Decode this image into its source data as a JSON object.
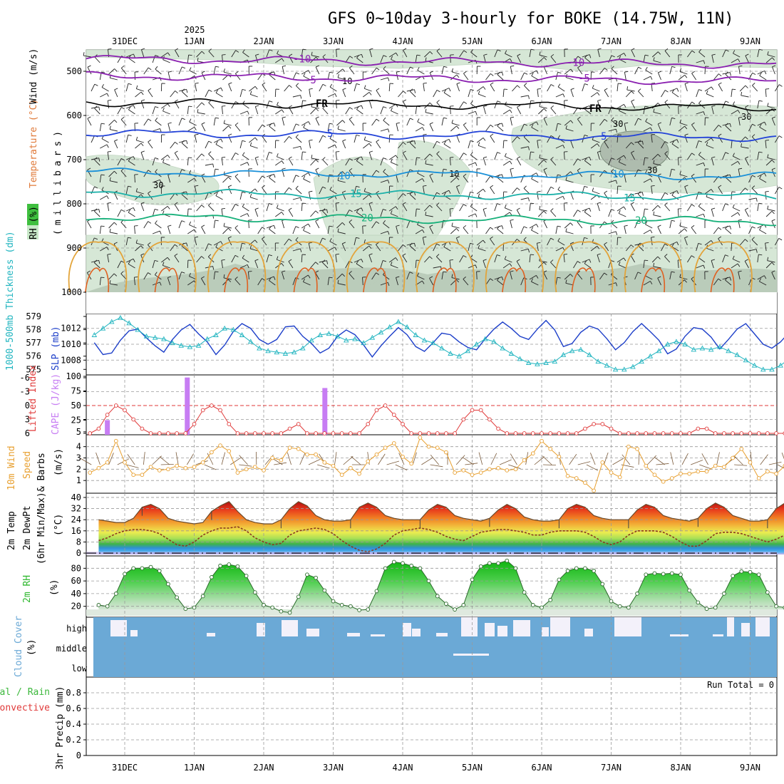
{
  "title": "GFS 0~10day 3-hourly for BOKE (14.75W, 11N)",
  "year_label": "2025",
  "date_labels": [
    "31DEC",
    "1JAN",
    "2JAN",
    "3JAN",
    "4JAN",
    "5JAN",
    "6JAN",
    "7JAN",
    "8JAN",
    "9JAN"
  ],
  "colors": {
    "temp": "#7a1fa2",
    "rh_fill": "#cfe3cf",
    "slp": "#1d3fc9",
    "thick": "#22b5c0",
    "li": "#e03a3a",
    "cape": "#c77df3",
    "wind": "#e8a030",
    "rh2m": "#2fb82f",
    "cloud": "#6ba9d6",
    "precip_total": "#3cb83c",
    "precip_conv": "#e03a3a"
  },
  "upper_panel": {
    "labels": {
      "rh": "RH (%)",
      "temp": "Temperature (°C)",
      "wind": "Wind (m/s)",
      "unit": "(millibars)"
    },
    "y_ticks": [
      "500",
      "600",
      "700",
      "800",
      "900",
      "1000"
    ],
    "isotherms": [
      {
        "label": "-10",
        "p": 472
      },
      {
        "label": "-5",
        "p": 510
      },
      {
        "label": "FR",
        "p": 570
      },
      {
        "label": "5",
        "p": 640
      },
      {
        "label": "10",
        "p": 728
      },
      {
        "label": "15",
        "p": 775
      },
      {
        "label": "20",
        "p": 830
      }
    ],
    "rh_contour_labels": [
      "10",
      "10",
      "30",
      "30",
      "30",
      "30"
    ]
  },
  "slp_panel": {
    "labels": {
      "thick": "1000-500mb Thickness (dm)",
      "slp": "SLP (mb)"
    },
    "left_ticks": [
      "579",
      "578",
      "577",
      "576",
      "575"
    ],
    "right_ticks": [
      "1012",
      "1010",
      "1008"
    ],
    "slp_range": [
      1006.5,
      1013.5
    ],
    "thick_range": [
      574.8,
      579
    ]
  },
  "li_panel": {
    "labels": {
      "li": "Lifted Index",
      "cape": "CAPE (J/kg)"
    },
    "left_ticks": [
      "-6",
      "-3",
      "0",
      "3",
      "6"
    ],
    "right_ticks": [
      "100",
      "75",
      "50",
      "25",
      "5"
    ],
    "cape_bars": [
      {
        "day": -0.25,
        "value": 25
      },
      {
        "day": 0.9,
        "value": 98
      },
      {
        "day": 2.88,
        "value": 80
      }
    ]
  },
  "wind_panel": {
    "labels": {
      "a": "10m Wind",
      "b": "Speed",
      "c": "& Barbs",
      "unit": "(m/s)"
    },
    "y_ticks": [
      "1",
      "2",
      "3",
      "4"
    ],
    "range": [
      0,
      4.8
    ]
  },
  "temp_panel": {
    "labels": {
      "a": "2m Temp",
      "b": "2m DewPt",
      "c": "(6hr Min/Max)",
      "unit": "(°C)"
    },
    "y_ticks": [
      "0",
      "8",
      "16",
      "24",
      "32",
      "40"
    ],
    "range": [
      -1,
      41
    ]
  },
  "rh2m_panel": {
    "labels": {
      "a": "2m RH",
      "unit": "(%)"
    },
    "y_ticks": [
      "20",
      "40",
      "60",
      "80"
    ],
    "range": [
      5,
      95
    ]
  },
  "cloud_panel": {
    "labels": {
      "a": "Cloud Cover",
      "unit": "(%)"
    },
    "levels": [
      "high",
      "middle",
      "low"
    ]
  },
  "precip_panel": {
    "labels": {
      "total": "Total / Rain",
      "conv": "Convective",
      "unit": "3hr Precip (mm)"
    },
    "y_ticks": [
      "0",
      "0.2",
      "0.4",
      "0.6",
      "0.8"
    ],
    "run_total": "Run Total = 0"
  },
  "chart_data": {
    "type": "line",
    "time_start": "2024-12-30T12:00Z",
    "time_step_hours": 3,
    "slp_mb": [
      1010.2,
      1008.7,
      1008.9,
      1010.5,
      1011.7,
      1011.9,
      1010.8,
      1009.8,
      1009.0,
      1010.6,
      1011.8,
      1012.5,
      1011.3,
      1010.3,
      1008.7,
      1009.9,
      1011.6,
      1012.6,
      1012.0,
      1010.6,
      1010.0,
      1010.6,
      1012.2,
      1012.3,
      1011.0,
      1010.1,
      1008.9,
      1009.5,
      1011.0,
      1011.8,
      1011.2,
      1009.9,
      1008.4,
      1009.8,
      1011.0,
      1012.1,
      1011.2,
      1009.7,
      1009.1,
      1010.2,
      1011.4,
      1011.2,
      1010.3,
      1009.6,
      1009.3,
      1010.7,
      1011.9,
      1012.8,
      1012.0,
      1011.0,
      1010.6,
      1011.9,
      1013.0,
      1011.8,
      1009.7,
      1010.1,
      1011.5,
      1012.3,
      1011.9,
      1010.7,
      1009.3,
      1010.2,
      1011.6,
      1012.6,
      1011.6,
      1010.5,
      1008.8,
      1009.4,
      1011.0,
      1012.1,
      1011.9,
      1010.9,
      1009.4,
      1010.6,
      1011.9,
      1012.6,
      1011.3,
      1010.0,
      1009.5,
      1010.3,
      1011.5,
      1011.6,
      1010.4,
      1009.4,
      1008.9,
      1010.3,
      1011.7,
      1012.4,
      1011.7,
      1009.9,
      1008.2,
      1009.7,
      1011.2,
      1012.4,
      1011.3,
      1009.9,
      1009.0,
      1009.6,
      1010.1
    ],
    "thickness_dm": [
      577.6,
      578.1,
      578.6,
      578.9,
      578.5,
      578.0,
      577.5,
      577.4,
      577.3,
      577.0,
      576.8,
      576.7,
      576.8,
      577.3,
      577.6,
      578.1,
      578.0,
      577.6,
      577.1,
      576.6,
      576.4,
      576.3,
      576.2,
      576.3,
      576.6,
      577.2,
      577.6,
      577.7,
      577.5,
      577.2,
      577.3,
      577.0,
      577.4,
      577.8,
      578.2,
      578.6,
      578.2,
      577.6,
      577.2,
      577.0,
      576.6,
      576.2,
      576.0,
      576.4,
      576.9,
      577.3,
      577.1,
      576.6,
      576.2,
      575.8,
      575.5,
      575.4,
      575.5,
      575.6,
      576.1,
      576.4,
      576.5,
      576.1,
      575.6,
      575.3,
      575.0,
      575.0,
      575.2,
      575.6,
      576.0,
      576.4,
      576.9,
      577.1,
      576.9,
      576.5,
      576.6,
      576.5,
      576.7,
      576.4,
      576.1,
      575.7,
      575.3,
      575.0,
      575.0,
      575.3,
      575.8,
      576.3,
      576.7,
      576.8,
      576.7,
      576.5,
      576.8,
      577.3,
      577.9,
      578.2,
      578.2,
      577.6,
      577.2,
      577.6,
      578.4,
      578.8,
      578.3,
      577.4,
      576.8,
      576.0,
      575.4,
      574.9
    ],
    "lifted_index": [
      6,
      5,
      2,
      0,
      1,
      3,
      5,
      6,
      6,
      6,
      6,
      6,
      4,
      1,
      0,
      1,
      4,
      6,
      6,
      6,
      6,
      6,
      6,
      5,
      4,
      6,
      6,
      6,
      6,
      6,
      6,
      6,
      4,
      1,
      0,
      2,
      4,
      6,
      6,
      6,
      6,
      6,
      6,
      3,
      1,
      1,
      3,
      5,
      6,
      6,
      6,
      6,
      6,
      6,
      6,
      6,
      6,
      5,
      4,
      4,
      5,
      6,
      6,
      6,
      6,
      6,
      6,
      6,
      6,
      6,
      5,
      5,
      6,
      6,
      6,
      6,
      6,
      6,
      6,
      6,
      6,
      6,
      6,
      6,
      6,
      6,
      6,
      6,
      6,
      6,
      5,
      3,
      2,
      4,
      5,
      5,
      6
    ],
    "wind10m_ms": [
      1.7,
      2.1,
      2.6,
      4.5,
      2.6,
      1.5,
      1.5,
      2.2,
      1.9,
      2.0,
      2.3,
      2.1,
      2.2,
      2.6,
      3.5,
      4.1,
      3.6,
      1.7,
      2.0,
      2.2,
      1.9,
      3.0,
      2.8,
      3.9,
      3.8,
      3.3,
      3.3,
      2.6,
      2.3,
      1.5,
      2.1,
      1.6,
      2.7,
      3.3,
      3.9,
      4.3,
      3.1,
      2.5,
      4.8,
      4.0,
      3.9,
      3.5,
      1.7,
      1.9,
      1.5,
      1.7,
      2.0,
      2.1,
      1.9,
      2.0,
      2.8,
      3.4,
      4.5,
      3.8,
      3.1,
      1.4,
      1.2,
      0.8,
      0.1,
      2.6,
      1.7,
      1.3,
      4.0,
      3.8,
      2.3,
      1.5,
      0.9,
      1.2,
      1.6,
      1.6,
      1.8,
      1.8,
      2.3,
      2.2,
      3.0,
      3.8,
      2.6,
      1.2,
      1.8,
      1.6,
      2.3,
      3.3,
      2.9,
      1.6,
      1.0,
      1.6,
      2.3,
      2.2,
      4.3,
      2.6,
      1.8,
      0.8,
      2.4,
      1.8,
      1.5,
      1.8,
      2.0,
      2.7,
      4.2,
      3.0,
      0.2,
      2.1,
      2.8,
      2.0,
      1.5,
      0.6,
      1.3
    ],
    "temp2m_c": [
      24,
      23,
      22,
      22,
      25,
      33,
      35,
      32,
      25,
      23,
      22,
      21,
      22,
      30,
      34,
      37,
      30,
      24,
      22,
      21,
      21,
      24,
      32,
      37,
      34,
      27,
      24,
      23,
      23,
      24,
      33,
      36,
      33,
      27,
      25,
      24,
      24,
      24,
      31,
      35,
      33,
      27,
      25,
      24,
      23,
      25,
      31,
      35,
      32,
      26,
      24,
      23,
      23,
      24,
      32,
      35,
      33,
      27,
      25,
      24,
      24,
      24,
      31,
      35,
      33,
      27,
      25,
      24,
      23,
      25,
      32,
      36,
      33,
      27,
      25,
      23,
      23,
      24,
      32,
      36,
      33,
      27,
      24,
      23,
      22,
      23,
      32,
      37,
      33,
      26,
      24,
      22,
      21,
      21,
      21
    ],
    "dewpt2m_c": [
      9,
      11,
      14,
      16,
      17,
      17,
      16,
      14,
      10,
      6,
      5,
      8,
      13,
      16,
      18,
      18,
      19,
      16,
      11,
      8,
      6,
      7,
      13,
      16,
      17,
      18,
      17,
      14,
      9,
      5,
      2,
      1,
      3,
      7,
      13,
      16,
      17,
      18,
      17,
      15,
      12,
      10,
      9,
      12,
      15,
      16,
      17,
      17,
      16,
      15,
      13,
      13,
      15,
      16,
      16,
      16,
      15,
      12,
      8,
      6,
      8,
      13,
      16,
      16,
      16,
      15,
      12,
      8,
      5,
      5,
      9,
      14,
      15,
      15,
      14,
      12,
      10,
      8,
      10,
      13,
      15,
      15,
      14,
      12,
      9,
      6,
      8,
      13,
      16,
      16,
      17,
      15,
      11,
      7,
      5,
      10,
      16,
      17,
      16
    ],
    "rh2m_pct": [
      22,
      20,
      40,
      71,
      80,
      80,
      82,
      76,
      55,
      34,
      16,
      18,
      36,
      66,
      84,
      86,
      83,
      68,
      42,
      22,
      18,
      12,
      10,
      35,
      70,
      65,
      45,
      28,
      22,
      20,
      14,
      15,
      44,
      80,
      90,
      88,
      84,
      80,
      60,
      36,
      24,
      15,
      22,
      62,
      83,
      88,
      88,
      92,
      80,
      42,
      22,
      18,
      30,
      62,
      76,
      80,
      80,
      76,
      55,
      28,
      20,
      18,
      40,
      70,
      72,
      71,
      72,
      70,
      45,
      26,
      16,
      18,
      40,
      68,
      75,
      74,
      70,
      42,
      20,
      18,
      36,
      66,
      77,
      75,
      74,
      54,
      26,
      20,
      15,
      20,
      55,
      72,
      70,
      72,
      75
    ],
    "rh_contour_labels": [
      "10",
      "10",
      "30",
      "30",
      "30",
      "30"
    ],
    "units": {
      "slp": "mb",
      "thickness": "dm",
      "cape": "J/kg",
      "wind": "m/s",
      "temp": "°C",
      "rh": "%",
      "precip": "mm"
    },
    "precip_total_mm": 0
  }
}
